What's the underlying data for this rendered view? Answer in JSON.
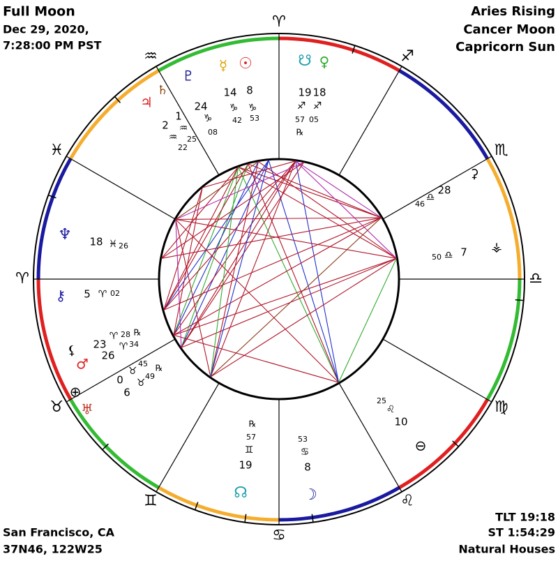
{
  "header": {
    "title": "Full Moon",
    "date": "Dec 29, 2020,",
    "time": "7:28:00 PM PST"
  },
  "summary": [
    "Aries Rising",
    "Cancer Moon",
    "Capricorn Sun"
  ],
  "location": {
    "place": "San Francisco, CA",
    "coords": "37N46, 122W25"
  },
  "info": [
    "TLT 19:18",
    "ST 1:54:29",
    "Natural Houses"
  ],
  "wheel": {
    "signs": [
      "♈",
      "♐",
      "♏",
      "♎",
      "♍",
      "♌",
      "♋",
      "♊",
      "♉",
      "♈",
      "♓",
      "♒"
    ],
    "labels": [
      "♇",
      "☿",
      "☉",
      "♄",
      "♃",
      "14",
      "8",
      "♑",
      "♑",
      "42",
      "53",
      "24",
      "♑",
      "08",
      "1",
      "♒",
      "25",
      "2",
      "♒",
      "22",
      "☋",
      "♀",
      "19",
      "18",
      "♐",
      "♐",
      "57",
      "05",
      "℞",
      "⚳",
      "28",
      "♎",
      "46",
      "7",
      "♎",
      "50",
      "⚶",
      "♆",
      "18",
      "♓",
      "26",
      "⚷",
      "5",
      "♈",
      "02",
      "♈",
      "28",
      "℞",
      "23",
      "♈",
      "34",
      "⚸",
      "♂",
      "26",
      "♉",
      "45",
      "℞",
      "0",
      "♉",
      "49",
      "6",
      "⊕",
      "♅",
      "℞",
      "57",
      "♊",
      "19",
      "☊",
      "53",
      "♋",
      "8",
      "☽",
      "25",
      "♌",
      "10",
      "⊖"
    ]
  }
}
